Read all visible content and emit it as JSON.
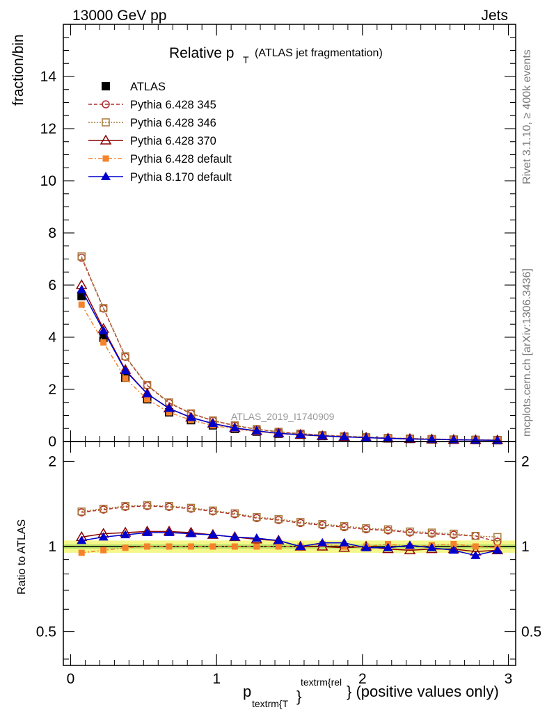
{
  "header": {
    "left": "13000 GeV pp",
    "right": "Jets"
  },
  "side_labels": {
    "rivet": "Rivet 3.1.10, ≥ 400k events",
    "mcplots": "mcplots.cern.ch [arXiv:1306.3436]"
  },
  "watermark": "ATLAS_2019_I1740909",
  "title": {
    "main": "Relative p",
    "sub": "T",
    "extra": "(ATLAS jet fragmentation)"
  },
  "ylabel_top": "fraction/bin",
  "ylabel_bottom": "Ratio to ATLAS",
  "xlabel": {
    "p": "p",
    "sub": "textrm{T",
    "sup": "textrm{rel",
    "close": "}",
    "rest": "} (positive values only)"
  },
  "chart_data": [
    {
      "type": "line",
      "panel": "main",
      "x": [
        0.075,
        0.225,
        0.375,
        0.525,
        0.675,
        0.825,
        0.975,
        1.125,
        1.275,
        1.425,
        1.575,
        1.725,
        1.875,
        2.025,
        2.175,
        2.325,
        2.475,
        2.625,
        2.775,
        2.925
      ],
      "xlim": [
        -0.05,
        3.05
      ],
      "ylim": [
        0,
        16
      ],
      "yticks": [
        0,
        2,
        4,
        6,
        8,
        10,
        12,
        14
      ],
      "xticks": [
        0,
        1,
        2,
        3
      ],
      "series": [
        {
          "name": "ATLAS",
          "color": "#000000",
          "marker": "square-filled",
          "values": [
            5.58,
            3.98,
            2.45,
            1.62,
            1.12,
            0.82,
            0.62,
            0.48,
            0.38,
            0.3,
            0.26,
            0.21,
            0.18,
            0.15,
            0.12,
            0.1,
            0.085,
            0.07,
            0.06,
            0.05
          ]
        },
        {
          "name": "Pythia 6.428 345",
          "color": "#b22c2c",
          "marker": "circle-open",
          "dash": "5,3",
          "values": [
            7.05,
            5.1,
            3.25,
            2.15,
            1.48,
            1.07,
            0.8,
            0.61,
            0.47,
            0.37,
            0.3,
            0.24,
            0.2,
            0.165,
            0.135,
            0.112,
            0.095,
            0.078,
            0.066,
            0.054
          ]
        },
        {
          "name": "Pythia 6.428 346",
          "color": "#a87a3a",
          "marker": "square-open",
          "dash": "2,2",
          "values": [
            7.1,
            5.12,
            3.27,
            2.17,
            1.5,
            1.08,
            0.81,
            0.62,
            0.48,
            0.375,
            0.305,
            0.245,
            0.205,
            0.17,
            0.138,
            0.116,
            0.098,
            0.08,
            0.067,
            0.055
          ]
        },
        {
          "name": "Pythia 6.428 370",
          "color": "#8b0000",
          "marker": "triangle-open",
          "dash": "",
          "values": [
            6.0,
            4.32,
            2.75,
            1.83,
            1.27,
            0.92,
            0.69,
            0.52,
            0.4,
            0.315,
            0.26,
            0.21,
            0.18,
            0.15,
            0.12,
            0.1,
            0.084,
            0.068,
            0.058,
            0.049
          ]
        },
        {
          "name": "Pythia 6.428 default",
          "color": "#f5832b",
          "marker": "square-filled-small",
          "dash": "6,3,2,3",
          "values": [
            5.25,
            3.8,
            2.42,
            1.62,
            1.12,
            0.82,
            0.62,
            0.48,
            0.385,
            0.305,
            0.26,
            0.215,
            0.18,
            0.15,
            0.123,
            0.102,
            0.086,
            0.072,
            0.06,
            0.05
          ]
        },
        {
          "name": "Pythia 8.170 default",
          "color": "#0000cc",
          "marker": "triangle-filled",
          "dash": "",
          "values": [
            5.82,
            4.25,
            2.72,
            1.83,
            1.27,
            0.92,
            0.69,
            0.52,
            0.41,
            0.315,
            0.265,
            0.215,
            0.18,
            0.148,
            0.122,
            0.1,
            0.084,
            0.068,
            0.055,
            0.048
          ]
        }
      ]
    },
    {
      "type": "line",
      "panel": "ratio",
      "x": [
        0.075,
        0.225,
        0.375,
        0.525,
        0.675,
        0.825,
        0.975,
        1.125,
        1.275,
        1.425,
        1.575,
        1.725,
        1.875,
        2.025,
        2.175,
        2.325,
        2.475,
        2.625,
        2.775,
        2.925
      ],
      "xlim": [
        -0.05,
        3.05
      ],
      "ylim": [
        0.38,
        2.35
      ],
      "ylog": true,
      "yticks": [
        0.5,
        1,
        2
      ],
      "xticks": [
        0,
        1,
        2,
        3
      ],
      "band": {
        "color": "#f4f78a",
        "lower": 0.95,
        "upper": 1.05
      },
      "series": [
        {
          "name": "Pythia 6.428 345",
          "color": "#b22c2c",
          "marker": "circle-open",
          "dash": "5,3",
          "values": [
            1.32,
            1.35,
            1.38,
            1.39,
            1.38,
            1.36,
            1.33,
            1.3,
            1.26,
            1.24,
            1.21,
            1.19,
            1.17,
            1.15,
            1.14,
            1.12,
            1.11,
            1.1,
            1.09,
            1.04
          ]
        },
        {
          "name": "Pythia 6.428 346",
          "color": "#a87a3a",
          "marker": "square-open",
          "dash": "2,2",
          "values": [
            1.33,
            1.36,
            1.39,
            1.4,
            1.39,
            1.37,
            1.34,
            1.31,
            1.27,
            1.25,
            1.22,
            1.2,
            1.18,
            1.16,
            1.15,
            1.13,
            1.12,
            1.11,
            1.09,
            1.08
          ]
        },
        {
          "name": "Pythia 6.428 370",
          "color": "#8b0000",
          "marker": "triangle-open",
          "dash": "",
          "values": [
            1.08,
            1.11,
            1.12,
            1.13,
            1.13,
            1.12,
            1.1,
            1.08,
            1.06,
            1.05,
            1.0,
            1.0,
            0.99,
            1.0,
            0.98,
            0.97,
            0.98,
            0.98,
            0.96,
            0.97
          ]
        },
        {
          "name": "Pythia 6.428 default",
          "color": "#f5832b",
          "marker": "square-filled-small",
          "dash": "6,3,2,3",
          "values": [
            0.95,
            0.97,
            0.99,
            1.0,
            1.0,
            1.0,
            1.0,
            1.0,
            1.0,
            1.0,
            1.0,
            1.02,
            1.0,
            1.0,
            1.02,
            1.0,
            1.01,
            1.02,
            1.0,
            0.99
          ]
        },
        {
          "name": "Pythia 8.170 default",
          "color": "#0000cc",
          "marker": "triangle-filled",
          "dash": "",
          "values": [
            1.05,
            1.08,
            1.1,
            1.12,
            1.12,
            1.11,
            1.1,
            1.08,
            1.07,
            1.05,
            1.0,
            1.03,
            1.03,
            0.99,
            0.99,
            1.01,
            0.99,
            0.97,
            0.93,
            0.97
          ]
        }
      ]
    }
  ]
}
